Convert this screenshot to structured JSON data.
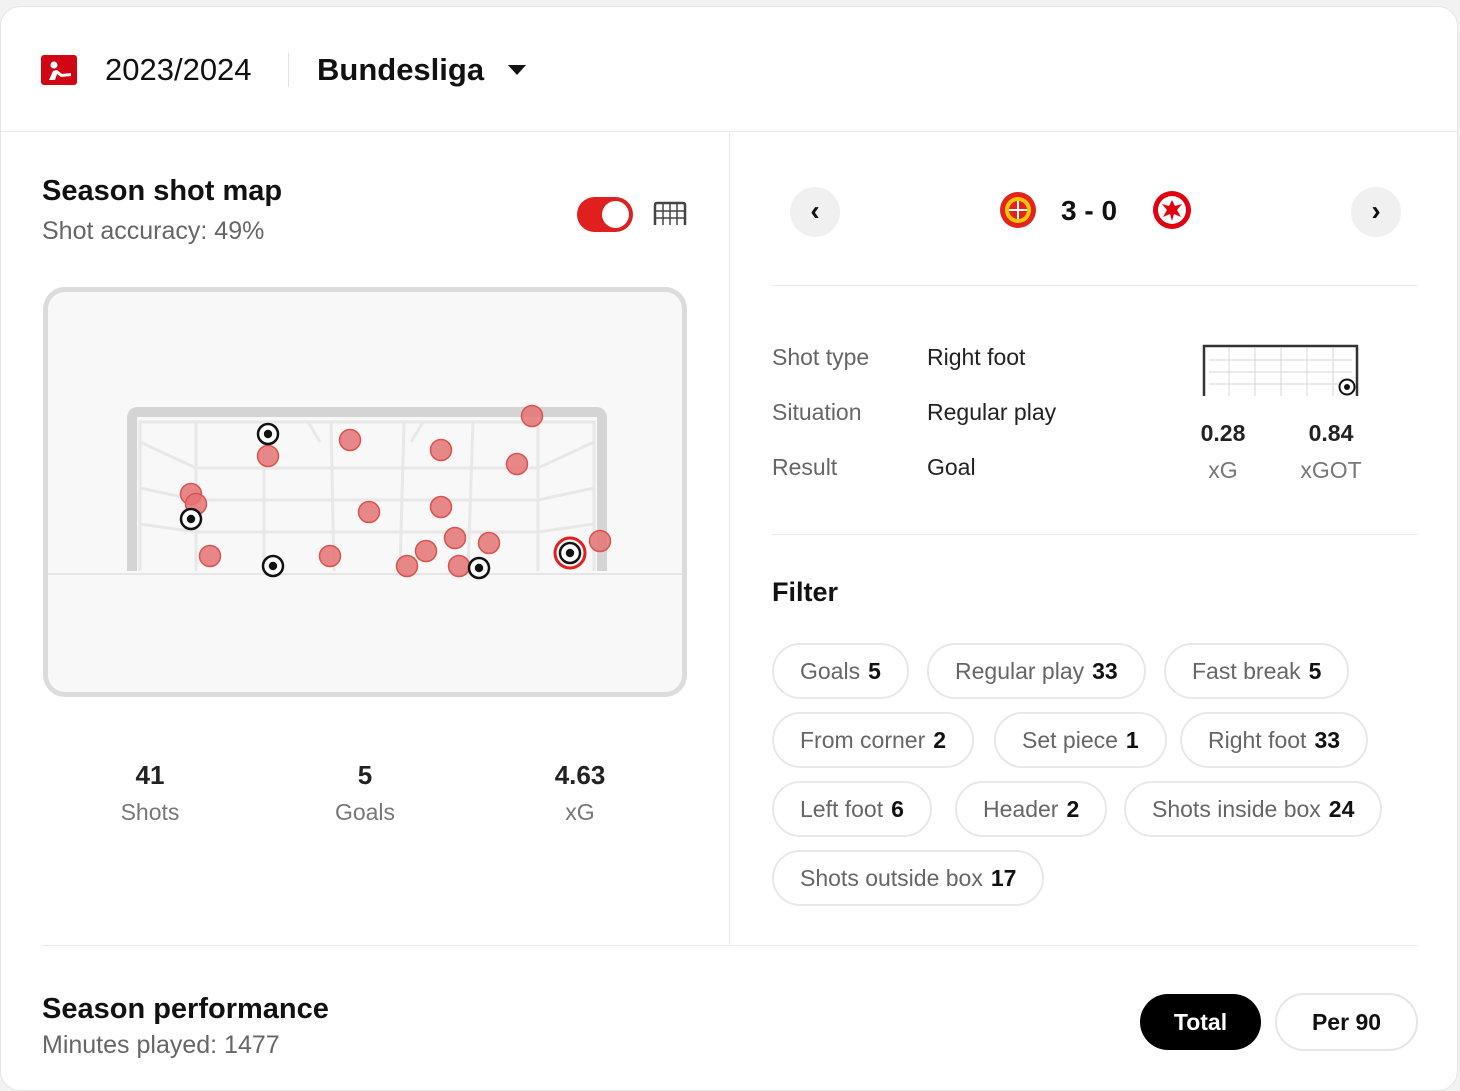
{
  "header": {
    "season": "2023/2024",
    "league": "Bundesliga"
  },
  "shot_map": {
    "title": "Season shot map",
    "subtitle": "Shot accuracy: 49%",
    "toggle_on": true,
    "stats": [
      {
        "value": "41",
        "label": "Shots"
      },
      {
        "value": "5",
        "label": "Goals"
      },
      {
        "value": "4.63",
        "label": "xG"
      }
    ]
  },
  "match": {
    "score": "3 - 0",
    "home_team_icon": "leverkusen-crest-icon",
    "away_team_icon": "frankfurt-eagle-icon"
  },
  "shot_detail": {
    "rows": [
      {
        "label": "Shot type",
        "value": "Right foot"
      },
      {
        "label": "Situation",
        "value": "Regular play"
      },
      {
        "label": "Result",
        "value": "Goal"
      }
    ],
    "xg_value": "0.28",
    "xg_label": "xG",
    "xgot_value": "0.84",
    "xgot_label": "xGOT"
  },
  "filter": {
    "title": "Filter",
    "chips": [
      {
        "label": "Goals",
        "count": "5"
      },
      {
        "label": "Regular play",
        "count": "33"
      },
      {
        "label": "Fast break",
        "count": "5"
      },
      {
        "label": "From corner",
        "count": "2"
      },
      {
        "label": "Set piece",
        "count": "1"
      },
      {
        "label": "Right foot",
        "count": "33"
      },
      {
        "label": "Left foot",
        "count": "6"
      },
      {
        "label": "Header",
        "count": "2"
      },
      {
        "label": "Shots inside box",
        "count": "24"
      },
      {
        "label": "Shots outside box",
        "count": "17"
      }
    ]
  },
  "performance": {
    "title": "Season performance",
    "subtitle": "Minutes played: 1477",
    "total_label": "Total",
    "per90_label": "Per 90"
  },
  "colors": {
    "accent_red": "#e0201e",
    "shot_fill": "#e57373",
    "chip_border": "#e8e8e8"
  }
}
